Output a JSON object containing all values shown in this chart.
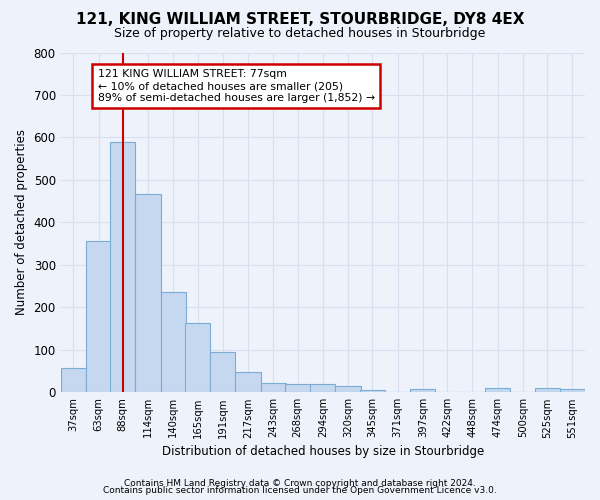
{
  "title1": "121, KING WILLIAM STREET, STOURBRIDGE, DY8 4EX",
  "title2": "Size of property relative to detached houses in Stourbridge",
  "xlabel": "Distribution of detached houses by size in Stourbridge",
  "ylabel": "Number of detached properties",
  "footer1": "Contains HM Land Registry data © Crown copyright and database right 2024.",
  "footer2": "Contains public sector information licensed under the Open Government Licence v3.0.",
  "annotation_line1": "121 KING WILLIAM STREET: 77sqm",
  "annotation_line2": "← 10% of detached houses are smaller (205)",
  "annotation_line3": "89% of semi-detached houses are larger (1,852) →",
  "bar_color": "#c5d8f0",
  "bar_edge_color": "#7badd4",
  "vline_color": "#cc0000",
  "vline_x": 88,
  "categories": [
    37,
    63,
    88,
    114,
    140,
    165,
    191,
    217,
    243,
    268,
    294,
    320,
    345,
    371,
    397,
    422,
    448,
    474,
    500,
    525,
    551
  ],
  "bin_width": 26,
  "values": [
    57,
    357,
    590,
    468,
    235,
    163,
    96,
    47,
    22,
    20,
    20,
    15,
    5,
    0,
    8,
    0,
    0,
    10,
    0,
    10,
    7
  ],
  "ylim": [
    0,
    800
  ],
  "yticks": [
    0,
    100,
    200,
    300,
    400,
    500,
    600,
    700,
    800
  ],
  "background_color": "#eef2fa",
  "grid_color": "#d8dff0",
  "figsize": [
    6.0,
    5.0
  ],
  "dpi": 100,
  "title1_fontsize": 11,
  "title2_fontsize": 9,
  "ylabel_fontsize": 8.5,
  "xlabel_fontsize": 8.5,
  "footer_fontsize": 6.5,
  "ytick_fontsize": 8.5,
  "xtick_fontsize": 7.2
}
